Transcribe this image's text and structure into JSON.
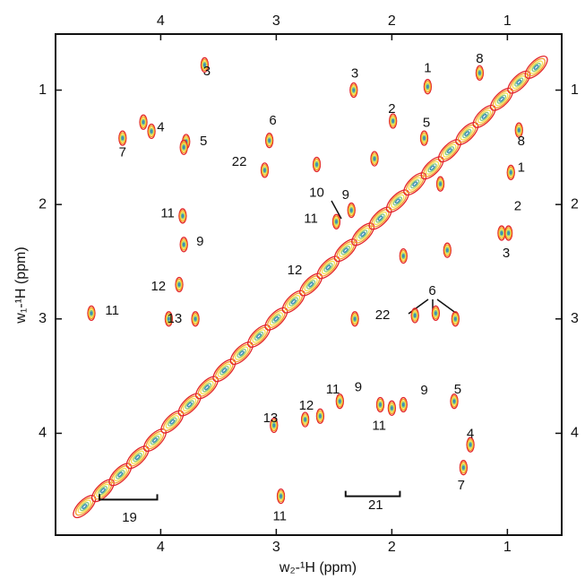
{
  "chart_data": {
    "type": "nmr2d",
    "x_label": "w₂-¹H  (ppm)",
    "y_label": "w₁-¹H  (ppm)",
    "xlim": [
      4.91,
      0.53
    ],
    "ylim": [
      0.51,
      4.89
    ],
    "xticks": [
      4,
      3,
      2,
      1
    ],
    "yticks": [
      1,
      2,
      3,
      4
    ],
    "contour_colors": [
      "#e3262c",
      "#f39a2a",
      "#f4e04e",
      "#86c77f",
      "#3c8db5"
    ],
    "diagonal_peaks": {
      "x": [
        4.66,
        4.5,
        4.35,
        4.2,
        4.05,
        3.9,
        3.75,
        3.6,
        3.45,
        3.3,
        3.15,
        3.0,
        2.85,
        2.7,
        2.55,
        2.4,
        2.25,
        2.1,
        1.95,
        1.8,
        1.65,
        1.5,
        1.35,
        1.2,
        1.05,
        0.9,
        0.75
      ],
      "y": [
        4.64,
        4.5,
        4.36,
        4.21,
        4.06,
        3.9,
        3.75,
        3.6,
        3.45,
        3.3,
        3.15,
        3.0,
        2.85,
        2.7,
        2.55,
        2.4,
        2.26,
        2.12,
        1.97,
        1.82,
        1.68,
        1.53,
        1.38,
        1.23,
        1.08,
        0.93,
        0.8
      ]
    },
    "cross_peaks": {
      "x": [
        3.62,
        2.33,
        1.69,
        1.24,
        1.99,
        4.15,
        4.33,
        4.08,
        1.72,
        3.78,
        3.8,
        3.06,
        3.1,
        0.9,
        0.97,
        2.35,
        2.48,
        3.81,
        3.8,
        1.05,
        0.99,
        3.84,
        4.6,
        3.93,
        3.7,
        2.32,
        1.62,
        1.8,
        1.45,
        2.45,
        2.1,
        2.0,
        1.9,
        1.46,
        2.62,
        2.75,
        3.02,
        1.32,
        1.38,
        2.96,
        1.58,
        1.52,
        1.9,
        2.15,
        2.65
      ],
      "y": [
        0.78,
        1.0,
        0.97,
        0.85,
        1.27,
        1.28,
        1.42,
        1.36,
        1.42,
        1.45,
        1.5,
        1.44,
        1.7,
        1.35,
        1.72,
        2.05,
        2.15,
        2.1,
        2.35,
        2.25,
        2.25,
        2.7,
        2.95,
        3.0,
        3.0,
        3.0,
        2.95,
        2.97,
        3.0,
        3.72,
        3.75,
        3.78,
        3.75,
        3.72,
        3.85,
        3.88,
        3.93,
        4.1,
        4.3,
        4.55,
        1.82,
        2.4,
        2.45,
        1.6,
        1.65
      ]
    },
    "annotations": [
      {
        "text": "3",
        "x": 3.6,
        "y": 0.84
      },
      {
        "text": "3",
        "x": 2.32,
        "y": 0.86
      },
      {
        "text": "1",
        "x": 1.69,
        "y": 0.81
      },
      {
        "text": "8",
        "x": 1.24,
        "y": 0.73
      },
      {
        "text": "2",
        "x": 2.0,
        "y": 1.17
      },
      {
        "text": "4",
        "x": 4.0,
        "y": 1.33
      },
      {
        "text": "5",
        "x": 1.7,
        "y": 1.29
      },
      {
        "text": "6",
        "x": 3.03,
        "y": 1.27
      },
      {
        "text": "7",
        "x": 4.33,
        "y": 1.55
      },
      {
        "text": "5",
        "x": 3.63,
        "y": 1.45
      },
      {
        "text": "22",
        "x": 3.32,
        "y": 1.63
      },
      {
        "text": "8",
        "x": 0.88,
        "y": 1.45
      },
      {
        "text": "1",
        "x": 0.88,
        "y": 1.68
      },
      {
        "text": "10",
        "x": 2.65,
        "y": 1.9
      },
      {
        "text": "9",
        "x": 2.4,
        "y": 1.92
      },
      {
        "text": "11",
        "x": 3.94,
        "y": 2.08
      },
      {
        "text": "11",
        "x": 2.7,
        "y": 2.13
      },
      {
        "text": "2",
        "x": 0.91,
        "y": 2.02
      },
      {
        "text": "9",
        "x": 3.66,
        "y": 2.33
      },
      {
        "text": "3",
        "x": 1.01,
        "y": 2.43
      },
      {
        "text": "12",
        "x": 2.84,
        "y": 2.58
      },
      {
        "text": "12",
        "x": 4.02,
        "y": 2.72
      },
      {
        "text": "6",
        "x": 1.65,
        "y": 2.76
      },
      {
        "text": "11",
        "x": 4.42,
        "y": 2.93
      },
      {
        "text": "22",
        "x": 2.08,
        "y": 2.97
      },
      {
        "text": "13",
        "x": 3.88,
        "y": 3.0
      },
      {
        "text": "13",
        "x": 3.05,
        "y": 3.87
      },
      {
        "text": "11",
        "x": 2.51,
        "y": 3.62
      },
      {
        "text": "9",
        "x": 2.29,
        "y": 3.6
      },
      {
        "text": "9",
        "x": 1.72,
        "y": 3.63
      },
      {
        "text": "5",
        "x": 1.43,
        "y": 3.62
      },
      {
        "text": "12",
        "x": 2.74,
        "y": 3.76
      },
      {
        "text": "11",
        "x": 2.11,
        "y": 3.94
      },
      {
        "text": "4",
        "x": 1.32,
        "y": 4.01
      },
      {
        "text": "7",
        "x": 1.4,
        "y": 4.46
      },
      {
        "text": "19",
        "x": 4.27,
        "y": 4.74
      },
      {
        "text": "21",
        "x": 2.14,
        "y": 4.63
      },
      {
        "text": "11",
        "x": 2.97,
        "y": 4.73
      }
    ],
    "brackets": [
      {
        "x1": 4.53,
        "x2": 4.03,
        "y": 4.58
      },
      {
        "x1": 2.4,
        "x2": 1.93,
        "y": 4.55
      }
    ]
  }
}
